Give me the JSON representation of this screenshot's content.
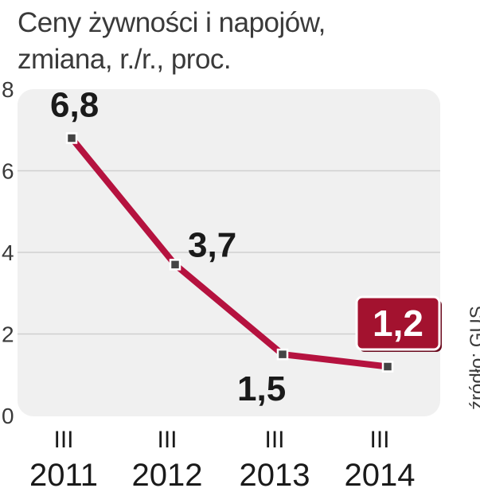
{
  "title": "Ceny żywności i napojów,",
  "subtitle": "zmiana, r./r., proc.",
  "source": "źródło: GUS",
  "colors": {
    "line": "#b5123f",
    "panel": "#f0f0f0",
    "grid": "#cfcfcf",
    "highlight_box": "#a3122f",
    "text": "#1a1a1a"
  },
  "chart_data": {
    "type": "line",
    "categories": [
      {
        "month": "III",
        "year": "2011"
      },
      {
        "month": "III",
        "year": "2012"
      },
      {
        "month": "III",
        "year": "2013"
      },
      {
        "month": "III",
        "year": "2014"
      }
    ],
    "values": [
      6.8,
      3.7,
      1.5,
      1.2
    ],
    "data_labels": [
      "6,8",
      "3,7",
      "1,5",
      "1,2"
    ],
    "highlighted_index": 3,
    "y_ticks": [
      "0",
      "2",
      "4",
      "6",
      "8"
    ],
    "ylim": [
      0,
      8
    ],
    "grid": true
  }
}
